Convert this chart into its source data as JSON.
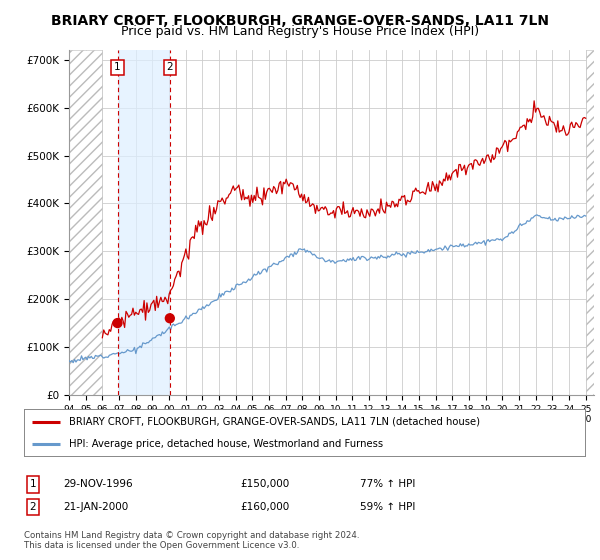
{
  "title": "BRIARY CROFT, FLOOKBURGH, GRANGE-OVER-SANDS, LA11 7LN",
  "subtitle": "Price paid vs. HM Land Registry's House Price Index (HPI)",
  "title_fontsize": 10,
  "subtitle_fontsize": 9,
  "ylabel_ticks": [
    "£0",
    "£100K",
    "£200K",
    "£300K",
    "£400K",
    "£500K",
    "£600K",
    "£700K"
  ],
  "ytick_values": [
    0,
    100000,
    200000,
    300000,
    400000,
    500000,
    600000,
    700000
  ],
  "ylim": [
    0,
    720000
  ],
  "xlim_start": 1994.0,
  "xlim_end": 2025.5,
  "hatch_end": 1996.0,
  "sale1_x": 1996.91,
  "sale1_y": 150000,
  "sale1_label": "1",
  "sale2_x": 2000.05,
  "sale2_y": 160000,
  "sale2_label": "2",
  "red_color": "#cc0000",
  "blue_color": "#6699cc",
  "shade_color": "#ddeeff",
  "legend1": "BRIARY CROFT, FLOOKBURGH, GRANGE-OVER-SANDS, LA11 7LN (detached house)",
  "legend2": "HPI: Average price, detached house, Westmorland and Furness",
  "table_row1": [
    "1",
    "29-NOV-1996",
    "£150,000",
    "77% ↑ HPI"
  ],
  "table_row2": [
    "2",
    "21-JAN-2000",
    "£160,000",
    "59% ↑ HPI"
  ],
  "footnote": "Contains HM Land Registry data © Crown copyright and database right 2024.\nThis data is licensed under the Open Government Licence v3.0.",
  "background_color": "#ffffff",
  "grid_color": "#cccccc"
}
